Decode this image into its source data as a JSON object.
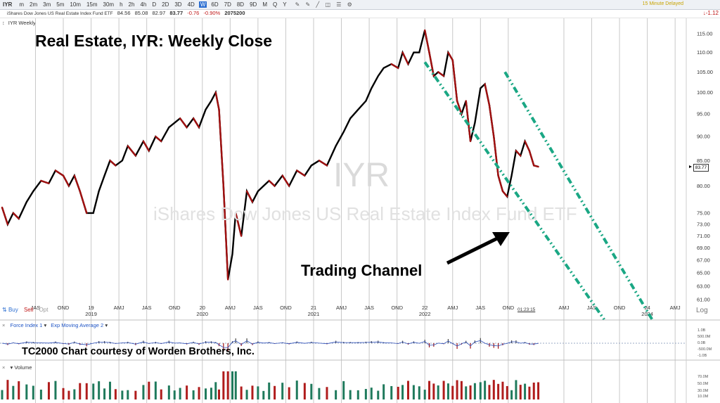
{
  "toolbar": {
    "symbol": "IYR",
    "timeframes": [
      "m",
      "2m",
      "3m",
      "5m",
      "10m",
      "15m",
      "30m",
      "h",
      "2h",
      "4h",
      "D",
      "2D",
      "3D",
      "4D",
      "W",
      "6D",
      "7D",
      "8D",
      "9D",
      "M",
      "Q",
      "Y"
    ],
    "selected": "W",
    "delay_notice": "15 Minute Delayed"
  },
  "infobar": {
    "name": "iShares Dow Jones US Real Estate Index Fund ETF",
    "open": "84.56",
    "high": "85.08",
    "low": "82.97",
    "close": "83.77",
    "change": "-0.76",
    "change_pct": "-0.90%",
    "volume": "2075200",
    "corner_change": "-1.12"
  },
  "panel_labels": {
    "main": "IYR Weekly",
    "force": "Force Index 1",
    "ema": "Exp Moving Average 2",
    "volume": "Volume"
  },
  "trade_buttons": {
    "buy": "Buy",
    "sell": "Sell",
    "opt": "Opt"
  },
  "clock": "01:23:15",
  "log_label": "Log",
  "price_box": "83.77",
  "annotations": {
    "title": "Real Estate, IYR:  Weekly Close",
    "channel": "Trading Channel",
    "credit": "TC2000 Chart courtesy of Worden Brothers, Inc."
  },
  "watermark": {
    "symbol": "IYR",
    "name": "iShares Dow Jones US Real Estate Index Fund ETF"
  },
  "colors": {
    "up": "#000000",
    "down": "#a11010",
    "channel": "#1aa784",
    "grid": "#c8c8c8",
    "vol_up": "#1f7a5c",
    "vol_down": "#b01c1c"
  },
  "chart_data": {
    "type": "line",
    "scale": "log",
    "ylim": [
      61,
      116
    ],
    "y_ticks": [
      "115.00",
      "110.00",
      "105.00",
      "100.00",
      "95.00",
      "90.00",
      "85.00",
      "80.00",
      "75.00",
      "73.00",
      "71.00",
      "69.00",
      "67.00",
      "65.00",
      "63.00",
      "61.00"
    ],
    "x_ticks": [
      {
        "label": "JAS",
        "t": 2018.5
      },
      {
        "label": "OND",
        "t": 2018.75
      },
      {
        "label": "19",
        "t": 2019.0
      },
      {
        "label": "AMJ",
        "t": 2019.25
      },
      {
        "label": "JAS",
        "t": 2019.5
      },
      {
        "label": "OND",
        "t": 2019.75
      },
      {
        "label": "20",
        "t": 2020.0
      },
      {
        "label": "AMJ",
        "t": 2020.25
      },
      {
        "label": "JAS",
        "t": 2020.5
      },
      {
        "label": "OND",
        "t": 2020.75
      },
      {
        "label": "21",
        "t": 2021.0
      },
      {
        "label": "AMJ",
        "t": 2021.25
      },
      {
        "label": "JAS",
        "t": 2021.5
      },
      {
        "label": "OND",
        "t": 2021.75
      },
      {
        "label": "22",
        "t": 2022.0
      },
      {
        "label": "AMJ",
        "t": 2022.25
      },
      {
        "label": "JAS",
        "t": 2022.5
      },
      {
        "label": "OND",
        "t": 2022.75
      },
      {
        "label": "AMJ",
        "t": 2023.25
      },
      {
        "label": "JAS",
        "t": 2023.5
      },
      {
        "label": "OND",
        "t": 2023.75
      },
      {
        "label": "24",
        "t": 2024.0
      },
      {
        "label": "AMJ",
        "t": 2024.25
      }
    ],
    "year_labels": [
      {
        "label": "2019",
        "t": 2019.0
      },
      {
        "label": "2020",
        "t": 2020.0
      },
      {
        "label": "2021",
        "t": 2021.0
      },
      {
        "label": "2022",
        "t": 2022.0
      },
      {
        "label": "2024",
        "t": 2024.0
      }
    ],
    "series": [
      {
        "values": [
          [
            2018.2,
            76
          ],
          [
            2018.25,
            73
          ],
          [
            2018.3,
            75
          ],
          [
            2018.35,
            74
          ],
          [
            2018.42,
            77
          ],
          [
            2018.48,
            79
          ],
          [
            2018.55,
            81
          ],
          [
            2018.62,
            80.5
          ],
          [
            2018.68,
            83
          ],
          [
            2018.75,
            82
          ],
          [
            2018.8,
            80
          ],
          [
            2018.85,
            82
          ],
          [
            2018.9,
            79
          ],
          [
            2018.96,
            75
          ],
          [
            2019.02,
            75
          ],
          [
            2019.07,
            79
          ],
          [
            2019.12,
            82
          ],
          [
            2019.17,
            85
          ],
          [
            2019.22,
            84
          ],
          [
            2019.28,
            85
          ],
          [
            2019.33,
            88
          ],
          [
            2019.4,
            86
          ],
          [
            2019.47,
            89
          ],
          [
            2019.52,
            87
          ],
          [
            2019.58,
            90
          ],
          [
            2019.63,
            89
          ],
          [
            2019.7,
            92
          ],
          [
            2019.75,
            93
          ],
          [
            2019.8,
            94
          ],
          [
            2019.86,
            92
          ],
          [
            2019.92,
            94
          ],
          [
            2019.97,
            92
          ],
          [
            2020.03,
            96
          ],
          [
            2020.08,
            98
          ],
          [
            2020.12,
            100
          ],
          [
            2020.15,
            96
          ],
          [
            2020.19,
            80
          ],
          [
            2020.23,
            64
          ],
          [
            2020.27,
            68
          ],
          [
            2020.3,
            75
          ],
          [
            2020.35,
            71
          ],
          [
            2020.4,
            79
          ],
          [
            2020.45,
            77
          ],
          [
            2020.5,
            79
          ],
          [
            2020.55,
            80
          ],
          [
            2020.6,
            81
          ],
          [
            2020.65,
            80
          ],
          [
            2020.72,
            82
          ],
          [
            2020.78,
            80
          ],
          [
            2020.85,
            83
          ],
          [
            2020.92,
            82
          ],
          [
            2020.98,
            84
          ],
          [
            2021.05,
            85
          ],
          [
            2021.12,
            84
          ],
          [
            2021.2,
            88
          ],
          [
            2021.27,
            91
          ],
          [
            2021.33,
            94
          ],
          [
            2021.4,
            96
          ],
          [
            2021.47,
            98
          ],
          [
            2021.52,
            101
          ],
          [
            2021.58,
            104
          ],
          [
            2021.63,
            106
          ],
          [
            2021.7,
            107
          ],
          [
            2021.76,
            106
          ],
          [
            2021.8,
            110
          ],
          [
            2021.85,
            107
          ],
          [
            2021.9,
            110
          ],
          [
            2021.95,
            110
          ],
          [
            2022.0,
            116
          ],
          [
            2022.04,
            110
          ],
          [
            2022.08,
            104
          ],
          [
            2022.12,
            105
          ],
          [
            2022.17,
            104
          ],
          [
            2022.21,
            110
          ],
          [
            2022.25,
            108
          ],
          [
            2022.29,
            98
          ],
          [
            2022.33,
            95
          ],
          [
            2022.37,
            98
          ],
          [
            2022.41,
            89
          ],
          [
            2022.45,
            93
          ],
          [
            2022.5,
            101
          ],
          [
            2022.54,
            102
          ],
          [
            2022.58,
            97
          ],
          [
            2022.62,
            90
          ],
          [
            2022.66,
            82
          ],
          [
            2022.7,
            79
          ],
          [
            2022.74,
            78
          ],
          [
            2022.78,
            82
          ],
          [
            2022.82,
            87
          ],
          [
            2022.86,
            86
          ],
          [
            2022.9,
            89
          ],
          [
            2022.94,
            87
          ],
          [
            2022.98,
            84
          ],
          [
            2023.02,
            83.77
          ]
        ]
      }
    ],
    "channel_lines": [
      {
        "from": [
          2022.0,
          107.5
        ],
        "to": [
          2023.62,
          58
        ]
      },
      {
        "from": [
          2022.72,
          105
        ],
        "to": [
          2024.05,
          58
        ]
      }
    ],
    "force_index_range": [
      "1.0B",
      "500.0M",
      "0.0B",
      "-500.0M",
      "-1.0B"
    ],
    "volume_range": [
      "70.0M",
      "50.0M",
      "30.0M",
      "10.0M"
    ]
  }
}
